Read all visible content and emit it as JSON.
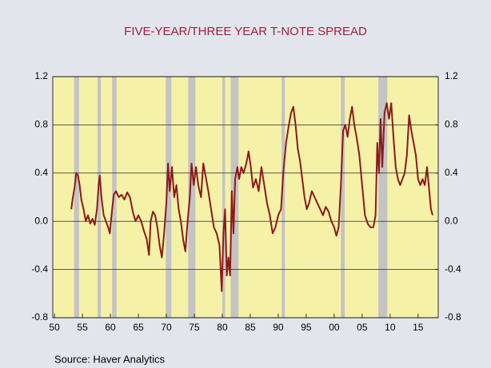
{
  "chart_data": {
    "type": "line",
    "title": "FIVE-YEAR/THREE YEAR T-NOTE SPREAD",
    "source": "Source:  Haver Analytics",
    "x": [
      1953.0,
      1953.3,
      1953.6,
      1953.9,
      1954.2,
      1954.5,
      1954.8,
      1955.2,
      1955.6,
      1956.0,
      1956.4,
      1956.8,
      1957.2,
      1957.6,
      1957.9,
      1958.1,
      1958.4,
      1958.8,
      1959.2,
      1959.6,
      1959.9,
      1960.2,
      1960.6,
      1961.0,
      1961.5,
      1962.0,
      1962.5,
      1963.0,
      1963.5,
      1964.0,
      1964.5,
      1965.0,
      1965.5,
      1966.0,
      1966.5,
      1966.9,
      1967.2,
      1967.6,
      1968.0,
      1968.4,
      1968.8,
      1969.2,
      1969.6,
      1970.0,
      1970.3,
      1970.6,
      1971.0,
      1971.4,
      1971.8,
      1972.2,
      1972.6,
      1973.0,
      1973.4,
      1973.8,
      1974.2,
      1974.5,
      1974.9,
      1975.3,
      1975.7,
      1976.2,
      1976.6,
      1977.0,
      1977.5,
      1978.0,
      1978.5,
      1979.0,
      1979.5,
      1979.9,
      1980.2,
      1980.5,
      1980.8,
      1981.1,
      1981.4,
      1981.7,
      1982.0,
      1982.3,
      1982.7,
      1983.0,
      1983.4,
      1983.8,
      1984.3,
      1984.7,
      1985.1,
      1985.5,
      1986.0,
      1986.5,
      1987.0,
      1987.5,
      1988.0,
      1988.5,
      1989.0,
      1989.5,
      1990.0,
      1990.5,
      1990.9,
      1991.4,
      1991.9,
      1992.3,
      1992.7,
      1993.1,
      1993.5,
      1993.9,
      1994.3,
      1994.7,
      1995.1,
      1995.5,
      1996.0,
      1996.5,
      1997.0,
      1997.5,
      1998.0,
      1998.5,
      1999.0,
      1999.5,
      2000.0,
      2000.4,
      2000.8,
      2001.2,
      2001.6,
      2002.0,
      2002.4,
      2002.8,
      2003.2,
      2003.6,
      2004.0,
      2004.5,
      2005.0,
      2005.5,
      2006.0,
      2006.5,
      2007.0,
      2007.4,
      2007.7,
      2008.0,
      2008.3,
      2008.6,
      2009.0,
      2009.4,
      2009.8,
      2010.2,
      2010.6,
      2011.0,
      2011.4,
      2011.8,
      2012.2,
      2012.6,
      2013.0,
      2013.4,
      2013.8,
      2014.2,
      2014.6,
      2015.0,
      2015.4,
      2015.8,
      2016.2,
      2016.6,
      2017.0,
      2017.3,
      2017.6
    ],
    "series": [
      {
        "name": "Spread",
        "color": "#8b1a1a",
        "values": [
          0.1,
          0.2,
          0.28,
          0.4,
          0.38,
          0.3,
          0.18,
          0.1,
          0.0,
          0.05,
          -0.02,
          0.02,
          -0.03,
          0.1,
          0.3,
          0.38,
          0.2,
          0.05,
          0.0,
          -0.05,
          -0.1,
          0.05,
          0.22,
          0.25,
          0.2,
          0.22,
          0.18,
          0.24,
          0.2,
          0.08,
          0.0,
          0.05,
          0.0,
          -0.08,
          -0.15,
          -0.28,
          0.0,
          0.08,
          0.05,
          -0.05,
          -0.2,
          -0.3,
          -0.1,
          0.15,
          0.48,
          0.25,
          0.45,
          0.2,
          0.3,
          0.1,
          0.0,
          -0.15,
          -0.25,
          0.0,
          0.2,
          0.48,
          0.3,
          0.45,
          0.3,
          0.2,
          0.48,
          0.38,
          0.25,
          0.1,
          -0.05,
          -0.1,
          -0.2,
          -0.58,
          -0.1,
          0.1,
          -0.45,
          -0.3,
          -0.45,
          0.25,
          -0.1,
          0.35,
          0.45,
          0.35,
          0.45,
          0.4,
          0.48,
          0.58,
          0.45,
          0.28,
          0.35,
          0.25,
          0.45,
          0.3,
          0.15,
          0.05,
          -0.1,
          -0.05,
          0.05,
          0.1,
          0.4,
          0.65,
          0.8,
          0.9,
          0.95,
          0.8,
          0.6,
          0.5,
          0.35,
          0.2,
          0.1,
          0.15,
          0.25,
          0.2,
          0.15,
          0.1,
          0.05,
          0.12,
          0.08,
          0.0,
          -0.05,
          -0.12,
          -0.05,
          0.3,
          0.75,
          0.8,
          0.7,
          0.85,
          0.95,
          0.8,
          0.7,
          0.55,
          0.3,
          0.05,
          -0.02,
          -0.05,
          -0.05,
          0.05,
          0.65,
          0.4,
          0.85,
          0.45,
          0.9,
          0.98,
          0.85,
          0.98,
          0.7,
          0.45,
          0.35,
          0.3,
          0.35,
          0.4,
          0.55,
          0.88,
          0.75,
          0.65,
          0.55,
          0.35,
          0.3,
          0.35,
          0.3,
          0.45,
          0.25,
          0.1,
          0.05
        ]
      }
    ],
    "recessions": [
      [
        1953.5,
        1954.4
      ],
      [
        1957.7,
        1958.3
      ],
      [
        1960.3,
        1961.1
      ],
      [
        1969.9,
        1970.9
      ],
      [
        1973.9,
        1975.2
      ],
      [
        1980.0,
        1980.5
      ],
      [
        1981.5,
        1982.9
      ],
      [
        1990.6,
        1991.2
      ],
      [
        2001.2,
        2001.9
      ],
      [
        2007.9,
        2009.5
      ]
    ],
    "recession_color": "#c4c4c4",
    "plot_color": "#f5f2a8",
    "xlim": [
      1949.7,
      2018.6
    ],
    "xticks": [
      {
        "value": 1950,
        "label": "50"
      },
      {
        "value": 1955,
        "label": "55"
      },
      {
        "value": 1960,
        "label": "60"
      },
      {
        "value": 1965,
        "label": "65"
      },
      {
        "value": 1970,
        "label": "70"
      },
      {
        "value": 1975,
        "label": "75"
      },
      {
        "value": 1980,
        "label": "80"
      },
      {
        "value": 1985,
        "label": "85"
      },
      {
        "value": 1990,
        "label": "90"
      },
      {
        "value": 1995,
        "label": "95"
      },
      {
        "value": 2000,
        "label": "00"
      },
      {
        "value": 2005,
        "label": "05"
      },
      {
        "value": 2010,
        "label": "10"
      },
      {
        "value": 2015,
        "label": "15"
      }
    ],
    "ylim": [
      -0.8,
      1.2
    ],
    "yticks": [
      1.2,
      0.8,
      0.4,
      {
        "value": 0,
        "label": "0.0"
      },
      -0.4,
      -0.8
    ],
    "y2lim": [
      -0.8,
      1.2
    ],
    "y2ticks": [
      1.2,
      0.8,
      0.4,
      {
        "value": 0,
        "label": "0.0"
      },
      -0.4,
      -0.8
    ],
    "grid": true
  }
}
